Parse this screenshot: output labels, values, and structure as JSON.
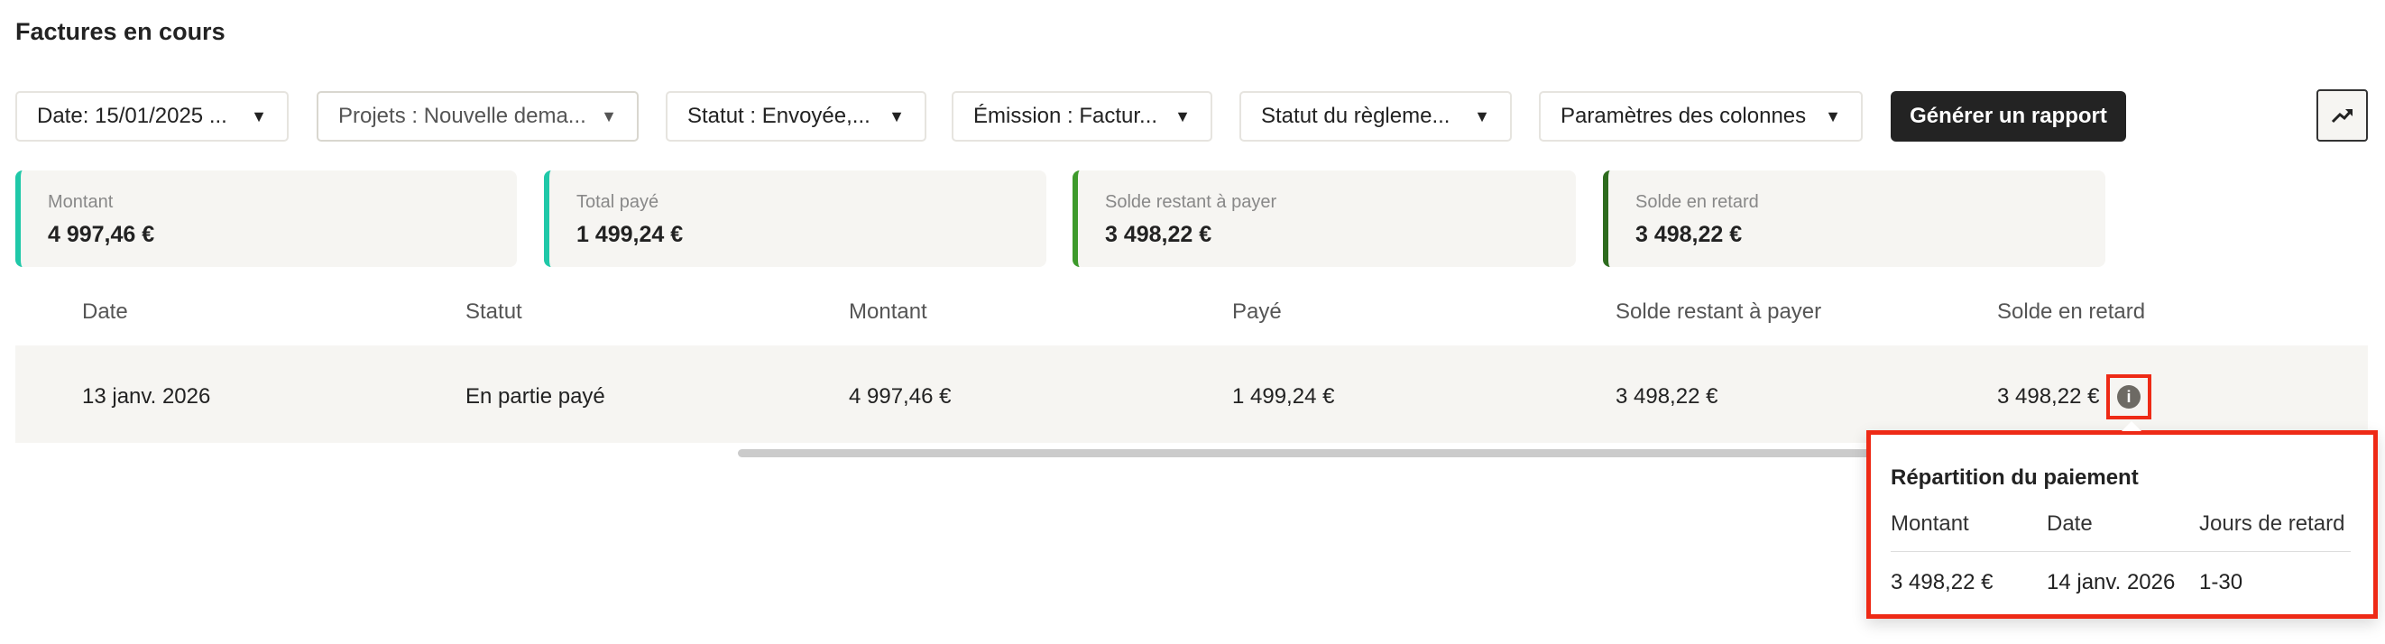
{
  "page": {
    "title": "Factures en cours"
  },
  "filters": [
    {
      "label": "Date: 15/01/2025 ..."
    },
    {
      "label": "Projets : Nouvelle dema..."
    },
    {
      "label": "Statut : Envoyée,..."
    },
    {
      "label": "Émission : Factur..."
    },
    {
      "label": "Statut du règleme..."
    },
    {
      "label": "Paramètres des colonnes"
    }
  ],
  "actions": {
    "generate_report": "Générer un rapport",
    "trend_icon": "trending-up-icon"
  },
  "summary": [
    {
      "label": "Montant",
      "value": "4 997,46 €",
      "color": "#1fc8a8"
    },
    {
      "label": "Total payé",
      "value": "1 499,24 €",
      "color": "#1fc8a8"
    },
    {
      "label": "Solde restant à payer",
      "value": "3 498,22 €",
      "color": "#3d9a2b"
    },
    {
      "label": "Solde en retard",
      "value": "3 498,22 €",
      "color": "#2d6b1e"
    }
  ],
  "table": {
    "columns": [
      "Date",
      "Statut",
      "Montant",
      "Payé",
      "Solde restant à payer",
      "Solde en retard"
    ],
    "rows": [
      [
        "13 janv. 2026",
        "En partie payé",
        "4 997,46 €",
        "1 499,24 €",
        "3 498,22 €",
        "3 498,22 €"
      ]
    ]
  },
  "popover": {
    "title": "Répartition du paiement",
    "columns": [
      "Montant",
      "Date",
      "Jours de retard"
    ],
    "row": [
      "3 498,22 €",
      "14 janv. 2026",
      "1-30"
    ]
  }
}
